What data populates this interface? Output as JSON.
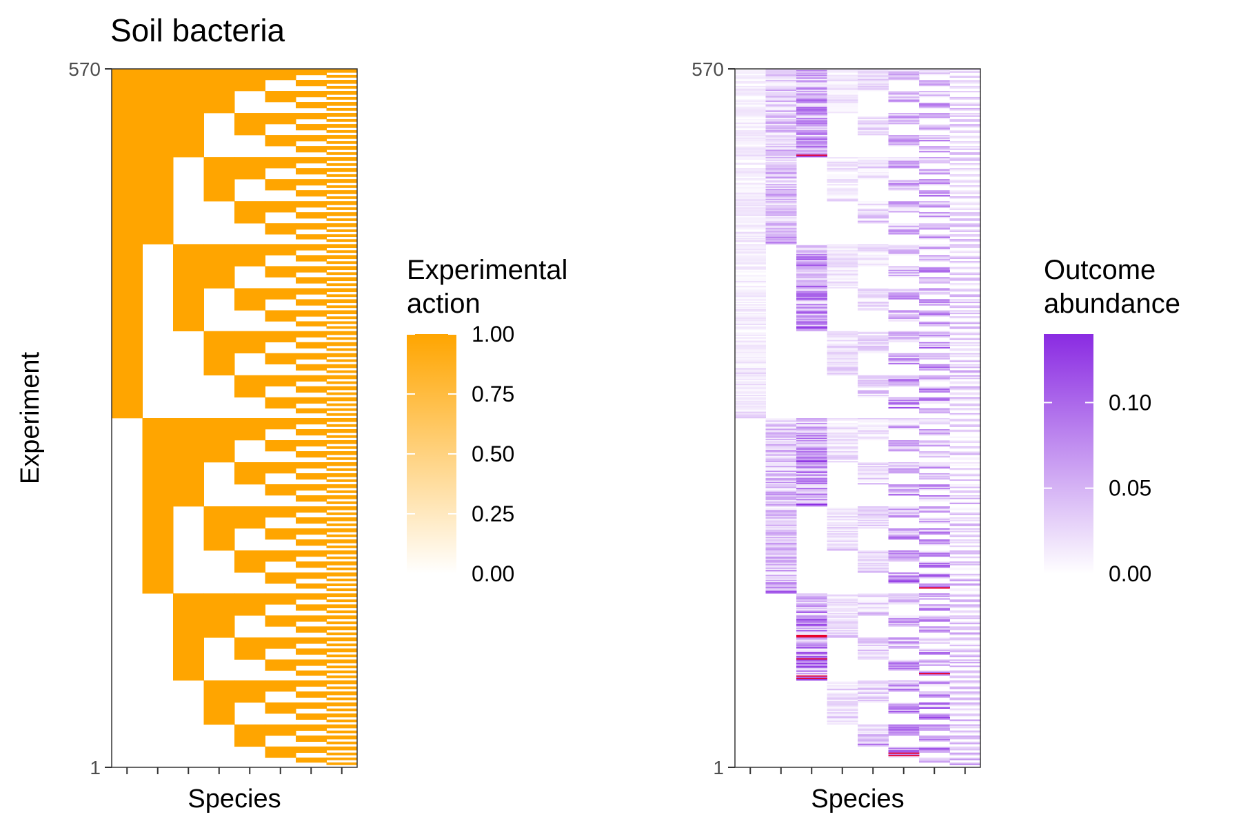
{
  "chart_data": [
    {
      "type": "heatmap",
      "title": "Soil bacteria",
      "xlabel": "Species",
      "ylabel": "Experiment",
      "ytick_labels": [
        "570",
        "1"
      ],
      "ylim": [
        1,
        570
      ],
      "n_species": 8,
      "grid": false,
      "color": "#FFA500",
      "legend": {
        "title_lines": [
          "Experimental",
          "action"
        ],
        "ticks": [
          "1.00",
          "0.75",
          "0.50",
          "0.25",
          "0.00"
        ],
        "range": [
          0,
          1
        ],
        "placement": "right"
      },
      "value_encoding": "Row r is experiment 570 - r; within a block of N rows, species k is 1 when the row falls in the first half of its sub-block of size N / 2^k",
      "hierarchy": {
        "levels_full_split": 3,
        "max_depth": 3
      }
    },
    {
      "type": "heatmap",
      "title": "",
      "xlabel": "Species",
      "ylabel": "",
      "ytick_labels": [
        "570",
        "1"
      ],
      "ylim": [
        1,
        570
      ],
      "n_species": 8,
      "grid": false,
      "color_low": "#FFFFFF",
      "color_high": "#8A2BE2",
      "overflow_color": "#E8002A",
      "legend": {
        "title_lines": [
          "Outcome",
          "abundance"
        ],
        "ticks": [
          "0.10",
          "0.05",
          "0.00"
        ],
        "tick_values": [
          0.1,
          0.05,
          0.0
        ],
        "range": [
          0,
          0.14
        ],
        "placement": "right"
      },
      "approx_band_means": [
        0.02,
        0.06,
        0.1,
        0.03,
        0.04,
        0.08,
        0.09,
        0.05
      ]
    }
  ]
}
